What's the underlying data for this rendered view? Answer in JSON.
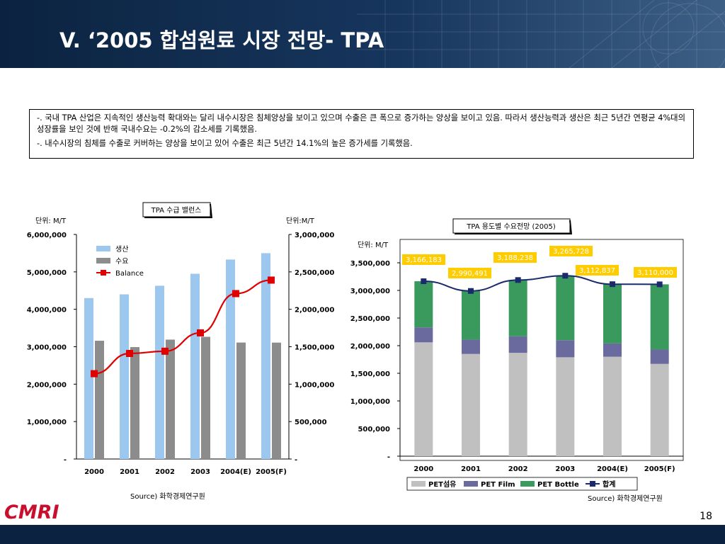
{
  "slide": {
    "title": "V. ‘2005 합섬원료 시장 전망- TPA",
    "page_number": "18",
    "logo_text": "CMRI"
  },
  "summary": {
    "line1": "-. 국내 TPA 산업은 지속적인 생산능력 확대와는 달리 내수시장은 침체양상을 보이고 있으며 수출은 큰 폭으로 증가하는 양상을 보이고 있음. 따라서 생산능력과 생산은 최근 5년간 연평균 4%대의 성장률을 보인 것에 반해 국내수요는 -0.2%의 감소세를 기록했음.",
    "line2": "-. 내수시장의 침체를 수출로 커버하는 양상을 보이고 있어 수출은 최근 5년간 14.1%의 높은 증가세를 기록했음."
  },
  "colors": {
    "header_dark": "#0b2340",
    "production_bar": "#9cc8f0",
    "demand_bar": "#8c8c8c",
    "balance_line": "#e00000",
    "pet_fiber": "#c0c0c0",
    "pet_film": "#6a6a9e",
    "pet_bottle": "#3a9a5e",
    "total_line": "#1a2a6c",
    "label_box": "#ffcc00"
  },
  "chart_data": [
    {
      "type": "bar",
      "title": "TPA 수급 밸런스",
      "ylabel_left": "단위: M/T",
      "ylabel_right": "단위:M/T",
      "categories": [
        "2000",
        "2001",
        "2002",
        "2003",
        "2004(E)",
        "2005(F)"
      ],
      "ylim_left": [
        0,
        6000000
      ],
      "ylim_right": [
        0,
        3000000
      ],
      "yticks_left": [
        "-",
        "1,000,000",
        "2,000,000",
        "3,000,000",
        "4,000,000",
        "5,000,000",
        "6,000,000"
      ],
      "yticks_right": [
        "-",
        "500,000",
        "1,000,000",
        "1,500,000",
        "2,000,000",
        "2,500,000",
        "3,000,000"
      ],
      "series": [
        {
          "name": "생산",
          "kind": "bar",
          "axis": "left",
          "values": [
            4300000,
            4400000,
            4630000,
            4950000,
            5330000,
            5500000
          ]
        },
        {
          "name": "수요",
          "kind": "bar",
          "axis": "left",
          "values": [
            3160000,
            2990000,
            3190000,
            3265000,
            3112000,
            3110000
          ]
        },
        {
          "name": "Balance",
          "kind": "line",
          "axis": "right",
          "values": [
            1140000,
            1410000,
            1440000,
            1685000,
            2210000,
            2390000
          ]
        }
      ],
      "legend": "top-left",
      "source": "Source) 화학경제연구원"
    },
    {
      "type": "bar",
      "stacked": true,
      "title": "TPA 용도별 수요전망 (2005)",
      "ylabel": "단위: M/T",
      "categories": [
        "2000",
        "2001",
        "2002",
        "2003",
        "2004(E)",
        "2005(F)"
      ],
      "ylim": [
        0,
        3500000
      ],
      "yticks": [
        "-",
        "500,000",
        "1,000,000",
        "1,500,000",
        "2,000,000",
        "2,500,000",
        "3,000,000",
        "3,500,000"
      ],
      "series": [
        {
          "name": "PET섬유",
          "kind": "bar",
          "values": [
            2060000,
            1850000,
            1870000,
            1790000,
            1800000,
            1670000
          ]
        },
        {
          "name": "PET Film",
          "kind": "bar",
          "values": [
            270000,
            260000,
            300000,
            310000,
            240000,
            260000
          ]
        },
        {
          "name": "PET Bottle",
          "kind": "bar",
          "values": [
            836183,
            880491,
            1018238,
            1165728,
            1072837,
            1180000
          ]
        },
        {
          "name": "합계",
          "kind": "line",
          "values": [
            3166183,
            2990491,
            3188238,
            3265728,
            3112837,
            3110000
          ]
        }
      ],
      "data_labels": [
        "3,166,183",
        "2,990,491",
        "3,188,238",
        "3,265,728",
        "3,112,837",
        "3,110,000"
      ],
      "legend": "bottom",
      "source": "Source) 화학경제연구원"
    }
  ]
}
